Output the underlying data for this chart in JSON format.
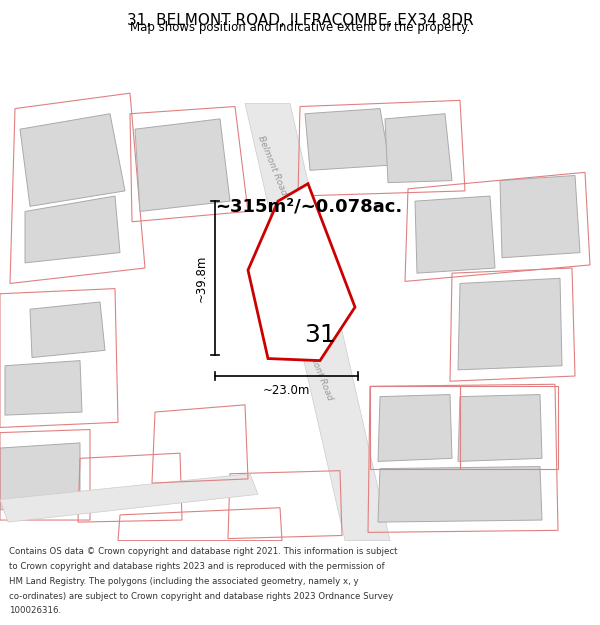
{
  "title": "31, BELMONT ROAD, ILFRACOMBE, EX34 8DR",
  "subtitle": "Map shows position and indicative extent of the property.",
  "area_text": "~315m²/~0.078ac.",
  "dim_vertical": "~39.8m",
  "dim_horizontal": "~23.0m",
  "label_31": "31",
  "highlight_color": "#cc0000",
  "highlight_fill": "#ffffff",
  "footer_lines": [
    "Contains OS data © Crown copyright and database right 2021. This information is subject",
    "to Crown copyright and database rights 2023 and is reproduced with the permission of",
    "HM Land Registry. The polygons (including the associated geometry, namely x, y",
    "co-ordinates) are subject to Crown copyright and database rights 2023 Ordnance Survey",
    "100026316."
  ]
}
